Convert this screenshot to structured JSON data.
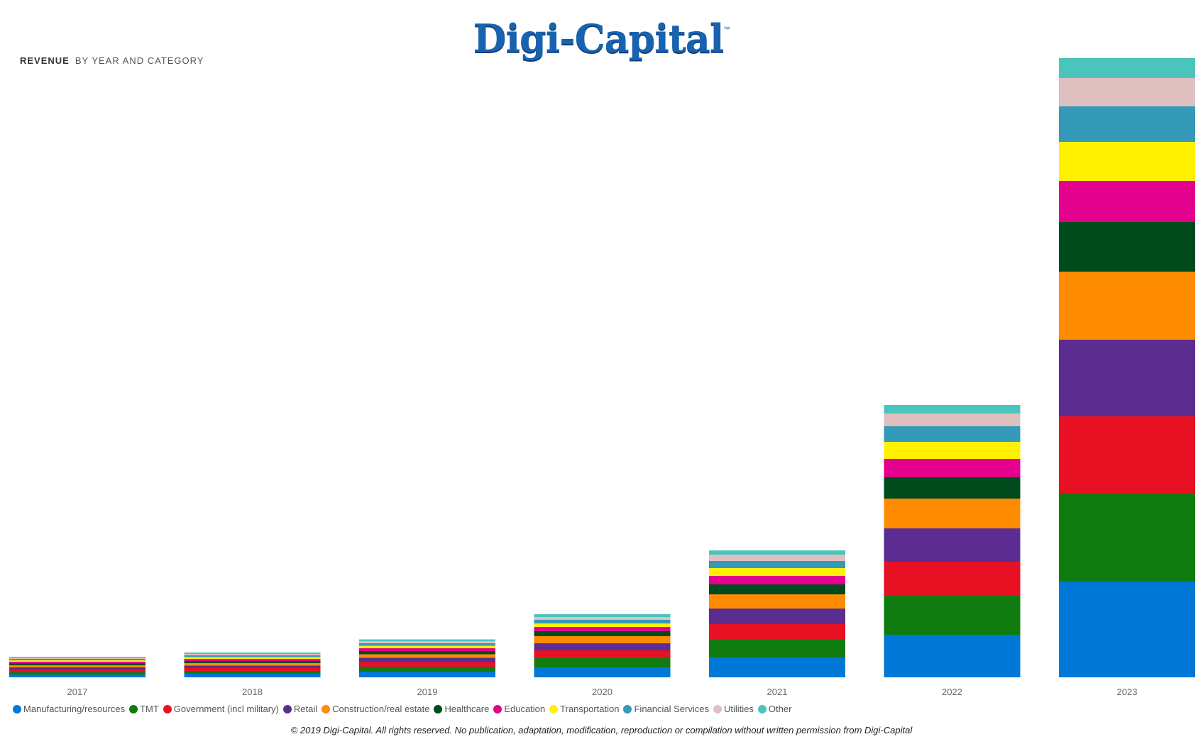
{
  "logo": {
    "text": "Digi-Capital",
    "tm": "™"
  },
  "title": {
    "main": "REVENUE",
    "sub": "BY YEAR AND CATEGORY"
  },
  "footer": "© 2019 Digi-Capital. All rights reserved. No publication, adaptation, modification, reproduction or compilation without written permission from Digi-Capital",
  "chart_data": {
    "type": "bar",
    "stacked": true,
    "ylabel": "",
    "xlabel": "",
    "categories": [
      "2017",
      "2018",
      "2019",
      "2020",
      "2021",
      "2022",
      "2023"
    ],
    "legend_position": "bottom-left",
    "grid": false,
    "series": [
      {
        "name": "Manufacturing/resources",
        "color": "#0078d7",
        "values": [
          4,
          5,
          8,
          14,
          28,
          60,
          135
        ]
      },
      {
        "name": "TMT",
        "color": "#107c10",
        "values": [
          3.5,
          4,
          7,
          13,
          25,
          55,
          125
        ]
      },
      {
        "name": "Government (incl military)",
        "color": "#e81123",
        "values": [
          3.5,
          4,
          6.5,
          11,
          22,
          48,
          108
        ]
      },
      {
        "name": "Retail",
        "color": "#5c2d91",
        "values": [
          3,
          3.5,
          6,
          10,
          22,
          47,
          108
        ]
      },
      {
        "name": "Construction/real estate",
        "color": "#ff8c00",
        "values": [
          3,
          3.5,
          5,
          10,
          20,
          42,
          96
        ]
      },
      {
        "name": "Healthcare",
        "color": "#004b1c",
        "values": [
          2.5,
          3,
          4.5,
          7,
          14,
          30,
          70
        ]
      },
      {
        "name": "Education",
        "color": "#e3008c",
        "values": [
          2.5,
          3,
          4,
          6,
          12,
          26,
          58
        ]
      },
      {
        "name": "Transportation",
        "color": "#fff100",
        "values": [
          2,
          2.5,
          3.5,
          5,
          11,
          24,
          55
        ]
      },
      {
        "name": "Financial Services",
        "color": "#3599b8",
        "values": [
          2,
          2.5,
          3.5,
          5,
          10,
          22,
          50
        ]
      },
      {
        "name": "Utilities",
        "color": "#dfbfbf",
        "values": [
          1.5,
          2,
          3,
          4,
          9,
          18,
          40
        ]
      },
      {
        "name": "Other",
        "color": "#4ac5bb",
        "values": [
          1.5,
          2,
          2.5,
          4,
          6,
          12,
          28
        ]
      }
    ]
  }
}
